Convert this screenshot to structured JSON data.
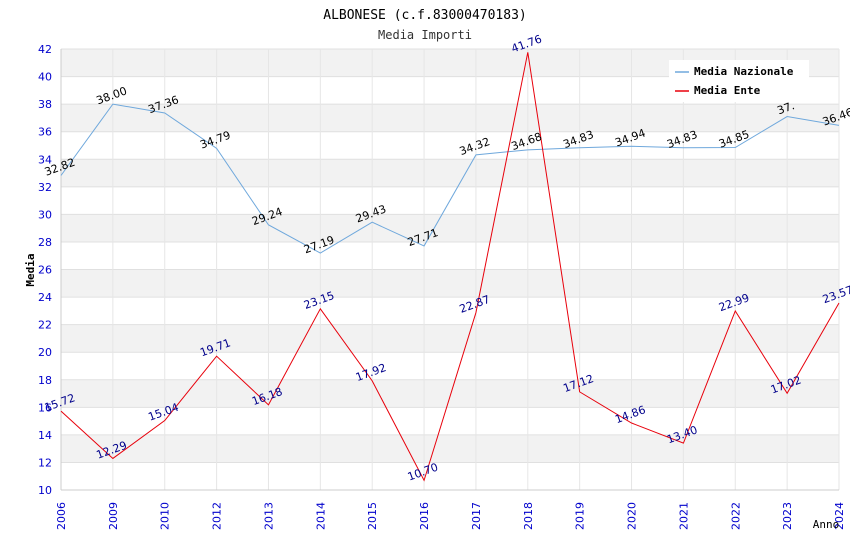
{
  "chart_data": {
    "type": "line",
    "title": "ALBONESE (c.f.83000470183)",
    "subtitle": "Media Importi",
    "xlabel": "Anno",
    "ylabel": "Media",
    "ylim": [
      10,
      42
    ],
    "ytick_step": 2,
    "grid": true,
    "legend_position": "top-right",
    "categories": [
      "2006",
      "2009",
      "2010",
      "2012",
      "2013",
      "2014",
      "2015",
      "2016",
      "2017",
      "2018",
      "2019",
      "2020",
      "2021",
      "2022",
      "2023",
      "2024"
    ],
    "series": [
      {
        "name": "Media Nazionale",
        "color": "#6fa8dc",
        "label_color": "#000000",
        "values": [
          32.82,
          38.0,
          37.36,
          34.79,
          29.24,
          27.19,
          29.43,
          27.71,
          34.32,
          34.68,
          34.83,
          34.94,
          34.83,
          34.85,
          37.1,
          36.46
        ],
        "labels": [
          "32.82",
          "38.00",
          "37.36",
          "34.79",
          "29.24",
          "27.19",
          "29.43",
          "27.71",
          "34.32",
          "34.68",
          "34.83",
          "34.94",
          "34.83",
          "34.85",
          "37.",
          "36.46"
        ]
      },
      {
        "name": "Media Ente",
        "color": "#e8000b",
        "label_color": "#00008b",
        "values": [
          15.72,
          12.29,
          15.04,
          19.71,
          16.18,
          23.15,
          17.92,
          10.7,
          22.87,
          41.76,
          17.12,
          14.86,
          13.4,
          22.99,
          17.02,
          23.57
        ],
        "labels": [
          "15.72",
          "12.29",
          "15.04",
          "19.71",
          "16.18",
          "23.15",
          "17.92",
          "10.70",
          "22.87",
          "41.76",
          "17.12",
          "14.86",
          "13.40",
          "22.99",
          "17.02",
          "23.57"
        ]
      }
    ]
  }
}
